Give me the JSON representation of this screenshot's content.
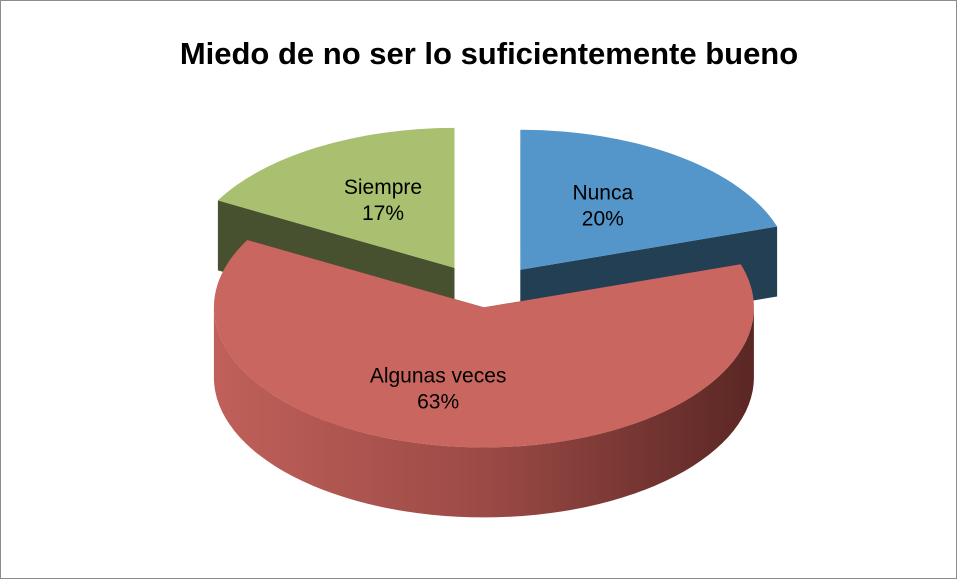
{
  "chart_data": {
    "type": "pie",
    "title": "Miedo de no ser lo suficientemente bueno",
    "categories": [
      "Nunca",
      "Algunas veces",
      "Siempre"
    ],
    "values": [
      20,
      63,
      17
    ],
    "value_labels": [
      "20%",
      "63%",
      "17%"
    ],
    "colors": [
      "#5496c9",
      "#c9665f",
      "#a9c070"
    ]
  }
}
